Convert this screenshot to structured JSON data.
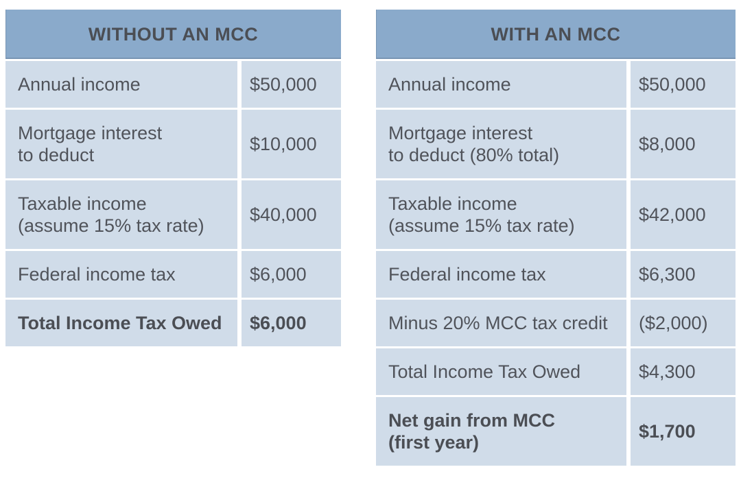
{
  "colors": {
    "header_bg": "#8aaacb",
    "cell_bg": "#d0dce9",
    "text": "#50535a",
    "page_bg": "#ffffff"
  },
  "tables": [
    {
      "title": "WITHOUT AN MCC",
      "rows": [
        {
          "label": "Annual income",
          "value": "$50,000",
          "bold": false
        },
        {
          "label": "Mortgage interest\nto deduct",
          "value": "$10,000",
          "bold": false
        },
        {
          "label": "Taxable income\n(assume 15% tax rate)",
          "value": "$40,000",
          "bold": false
        },
        {
          "label": "Federal income tax",
          "value": "$6,000",
          "bold": false
        },
        {
          "label": "Total Income Tax Owed",
          "value": "$6,000",
          "bold": true
        }
      ]
    },
    {
      "title": "WITH AN MCC",
      "rows": [
        {
          "label": "Annual income",
          "value": "$50,000",
          "bold": false
        },
        {
          "label": "Mortgage interest\nto deduct (80% total)",
          "value": "$8,000",
          "bold": false
        },
        {
          "label": "Taxable income\n(assume 15% tax rate)",
          "value": "$42,000",
          "bold": false
        },
        {
          "label": "Federal income tax",
          "value": "$6,300",
          "bold": false
        },
        {
          "label": "Minus 20% MCC tax credit",
          "value": "($2,000)",
          "bold": false
        },
        {
          "label": "Total Income Tax Owed",
          "value": "$4,300",
          "bold": false
        },
        {
          "label": "Net gain from MCC\n(first year)",
          "value": "$1,700",
          "bold": true
        }
      ]
    }
  ],
  "chart_data": [
    {
      "type": "table",
      "title": "WITHOUT AN MCC",
      "columns": [
        "Item",
        "Amount"
      ],
      "rows": [
        [
          "Annual income",
          "$50,000"
        ],
        [
          "Mortgage interest to deduct",
          "$10,000"
        ],
        [
          "Taxable income (assume 15% tax rate)",
          "$40,000"
        ],
        [
          "Federal income tax",
          "$6,000"
        ],
        [
          "Total Income Tax Owed",
          "$6,000"
        ]
      ]
    },
    {
      "type": "table",
      "title": "WITH AN MCC",
      "columns": [
        "Item",
        "Amount"
      ],
      "rows": [
        [
          "Annual income",
          "$50,000"
        ],
        [
          "Mortgage interest to deduct (80% total)",
          "$8,000"
        ],
        [
          "Taxable income (assume 15% tax rate)",
          "$42,000"
        ],
        [
          "Federal income tax",
          "$6,300"
        ],
        [
          "Minus 20% MCC tax credit",
          "($2,000)"
        ],
        [
          "Total Income Tax Owed",
          "$4,300"
        ],
        [
          "Net gain from MCC (first year)",
          "$1,700"
        ]
      ]
    }
  ]
}
